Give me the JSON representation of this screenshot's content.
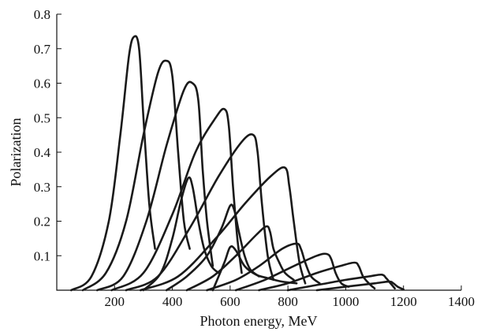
{
  "chart_data": {
    "type": "line",
    "title": "",
    "xlabel": "Photon energy, MeV",
    "ylabel": "Polarization",
    "xlim": [
      0,
      1400
    ],
    "ylim": [
      0,
      0.8
    ],
    "x_ticks": [
      200,
      400,
      600,
      800,
      1000,
      1200,
      1400
    ],
    "y_ticks": [
      0.1,
      0.2,
      0.3,
      0.4,
      0.5,
      0.6,
      0.7,
      0.8
    ],
    "grid": false,
    "legend": "none",
    "series": [
      {
        "values": [
          [
            50,
            0
          ],
          [
            120,
            0.04
          ],
          [
            180,
            0.2
          ],
          [
            220,
            0.45
          ],
          [
            250,
            0.68
          ],
          [
            268,
            0.735
          ],
          [
            285,
            0.7
          ],
          [
            300,
            0.5
          ],
          [
            320,
            0.25
          ],
          [
            340,
            0.12
          ]
        ]
      },
      {
        "values": [
          [
            90,
            0
          ],
          [
            170,
            0.05
          ],
          [
            240,
            0.2
          ],
          [
            300,
            0.45
          ],
          [
            350,
            0.63
          ],
          [
            380,
            0.665
          ],
          [
            400,
            0.62
          ],
          [
            420,
            0.4
          ],
          [
            440,
            0.2
          ],
          [
            460,
            0.12
          ]
        ]
      },
      {
        "values": [
          [
            140,
            0
          ],
          [
            230,
            0.04
          ],
          [
            310,
            0.2
          ],
          [
            380,
            0.42
          ],
          [
            440,
            0.58
          ],
          [
            470,
            0.6
          ],
          [
            490,
            0.55
          ],
          [
            505,
            0.35
          ],
          [
            520,
            0.2
          ],
          [
            540,
            0.07
          ]
        ]
      },
      {
        "values": [
          [
            190,
            0
          ],
          [
            300,
            0.05
          ],
          [
            400,
            0.22
          ],
          [
            480,
            0.4
          ],
          [
            550,
            0.5
          ],
          [
            580,
            0.525
          ],
          [
            595,
            0.48
          ],
          [
            610,
            0.3
          ],
          [
            625,
            0.15
          ],
          [
            640,
            0.05
          ]
        ]
      },
      {
        "values": [
          [
            240,
            0
          ],
          [
            350,
            0.04
          ],
          [
            460,
            0.18
          ],
          [
            560,
            0.33
          ],
          [
            640,
            0.43
          ],
          [
            680,
            0.45
          ],
          [
            695,
            0.4
          ],
          [
            710,
            0.25
          ],
          [
            730,
            0.1
          ],
          [
            750,
            0.03
          ]
        ]
      },
      {
        "values": [
          [
            290,
            0
          ],
          [
            420,
            0.04
          ],
          [
            550,
            0.15
          ],
          [
            650,
            0.25
          ],
          [
            740,
            0.33
          ],
          [
            790,
            0.355
          ],
          [
            805,
            0.3
          ],
          [
            820,
            0.2
          ],
          [
            840,
            0.08
          ],
          [
            860,
            0.02
          ]
        ]
      },
      {
        "values": [
          [
            300,
            0
          ],
          [
            360,
            0.05
          ],
          [
            400,
            0.15
          ],
          [
            430,
            0.26
          ],
          [
            455,
            0.325
          ],
          [
            470,
            0.3
          ],
          [
            490,
            0.2
          ],
          [
            510,
            0.12
          ],
          [
            535,
            0.07
          ],
          [
            560,
            0.05
          ]
        ]
      },
      {
        "values": [
          [
            380,
            0
          ],
          [
            450,
            0.04
          ],
          [
            520,
            0.1
          ],
          [
            570,
            0.18
          ],
          [
            600,
            0.245
          ],
          [
            615,
            0.23
          ],
          [
            630,
            0.17
          ],
          [
            650,
            0.1
          ],
          [
            670,
            0.06
          ],
          [
            700,
            0.04
          ]
        ]
      },
      {
        "values": [
          [
            450,
            0
          ],
          [
            540,
            0.04
          ],
          [
            620,
            0.1
          ],
          [
            690,
            0.16
          ],
          [
            725,
            0.185
          ],
          [
            738,
            0.17
          ],
          [
            750,
            0.12
          ],
          [
            770,
            0.08
          ],
          [
            790,
            0.05
          ],
          [
            820,
            0.03
          ]
        ]
      },
      {
        "values": [
          [
            520,
            0
          ],
          [
            620,
            0.03
          ],
          [
            700,
            0.07
          ],
          [
            780,
            0.12
          ],
          [
            830,
            0.135
          ],
          [
            845,
            0.12
          ],
          [
            860,
            0.08
          ],
          [
            880,
            0.04
          ],
          [
            910,
            0.02
          ]
        ]
      },
      {
        "values": [
          [
            540,
            0
          ],
          [
            580,
            0.08
          ],
          [
            600,
            0.125
          ],
          [
            620,
            0.115
          ],
          [
            650,
            0.07
          ],
          [
            690,
            0.045
          ],
          [
            730,
            0.035
          ],
          [
            780,
            0.025
          ],
          [
            830,
            0.02
          ]
        ]
      },
      {
        "values": [
          [
            620,
            0
          ],
          [
            720,
            0.03
          ],
          [
            820,
            0.07
          ],
          [
            900,
            0.1
          ],
          [
            935,
            0.105
          ],
          [
            950,
            0.09
          ],
          [
            965,
            0.05
          ],
          [
            985,
            0.02
          ],
          [
            1010,
            0.01
          ]
        ]
      },
      {
        "values": [
          [
            700,
            0
          ],
          [
            800,
            0.02
          ],
          [
            900,
            0.05
          ],
          [
            980,
            0.07
          ],
          [
            1030,
            0.08
          ],
          [
            1045,
            0.07
          ],
          [
            1060,
            0.04
          ],
          [
            1080,
            0.02
          ],
          [
            1100,
            0.005
          ]
        ]
      },
      {
        "values": [
          [
            800,
            0
          ],
          [
            900,
            0.015
          ],
          [
            1000,
            0.03
          ],
          [
            1080,
            0.04
          ],
          [
            1125,
            0.045
          ],
          [
            1140,
            0.035
          ],
          [
            1155,
            0.02
          ],
          [
            1170,
            0.005
          ]
        ]
      },
      {
        "values": [
          [
            900,
            0
          ],
          [
            1000,
            0.01
          ],
          [
            1100,
            0.02
          ],
          [
            1150,
            0.025
          ],
          [
            1165,
            0.02
          ],
          [
            1180,
            0.01
          ],
          [
            1200,
            0.002
          ]
        ]
      }
    ]
  }
}
